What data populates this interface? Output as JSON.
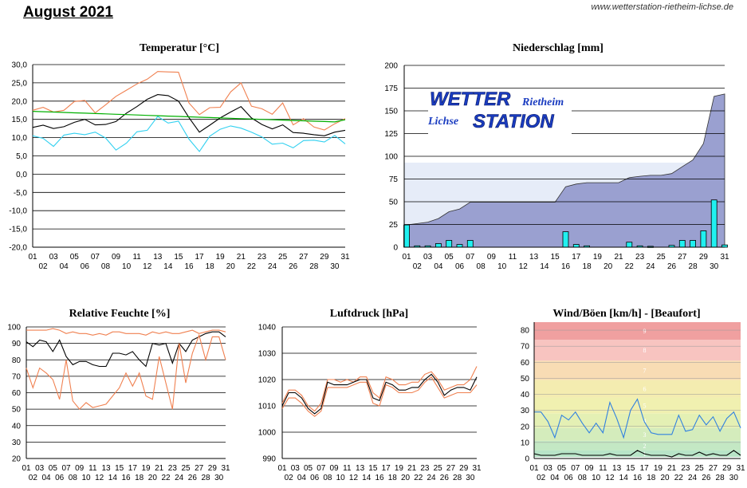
{
  "header": {
    "title": "August 2021",
    "url": "www.wetterstation-rietheim-lichse.de"
  },
  "logo": {
    "word_wetter": "WETTER",
    "word_rietheim": "Rietheim",
    "word_lichse": "Lichse",
    "word_station": "STATION"
  },
  "colors": {
    "temp_max": "#f08050",
    "temp_mean": "#000000",
    "temp_min": "#30d0f0",
    "temp_trend": "#00b000",
    "rain_fill": "#9aa0d0",
    "rain_bar": "#20f0f0",
    "rain_band": "#e6ecf8",
    "humidity_mean": "#000000",
    "humidity_range": "#f08050",
    "pressure_mean": "#000000",
    "pressure_range": "#f08050",
    "wind_gust": "#3080e0",
    "wind_mean": "#000000"
  },
  "chart_data": [
    {
      "type": "line",
      "title": "Temperatur [°C]",
      "ylim": [
        -20,
        30
      ],
      "yticks": [
        "30,0",
        "25,0",
        "20,0",
        "15,0",
        "10,0",
        "5,0",
        "0,0",
        "-5,0",
        "-10,0",
        "-15,0",
        "-20,0"
      ],
      "x": [
        "01",
        "02",
        "03",
        "04",
        "05",
        "06",
        "07",
        "08",
        "09",
        "10",
        "11",
        "12",
        "13",
        "14",
        "15",
        "16",
        "17",
        "18",
        "19",
        "20",
        "21",
        "22",
        "23",
        "24",
        "25",
        "26",
        "27",
        "28",
        "29",
        "30",
        "31"
      ],
      "series": [
        {
          "role": "max",
          "values": [
            17.5,
            18.3,
            17.0,
            17.5,
            19.9,
            20.2,
            16.8,
            19.0,
            21.3,
            23.0,
            24.7,
            26.0,
            28.1,
            28.0,
            27.9,
            19.5,
            16.3,
            18.2,
            18.3,
            22.5,
            25.0,
            18.6,
            17.9,
            16.4,
            19.5,
            13.5,
            15.2,
            12.9,
            12.1,
            13.8,
            15.2
          ]
        },
        {
          "role": "mean",
          "values": [
            12.8,
            13.4,
            12.5,
            13.0,
            14.2,
            15.0,
            13.5,
            13.6,
            14.4,
            16.7,
            18.5,
            20.5,
            21.8,
            21.5,
            20.0,
            15.5,
            11.5,
            13.4,
            15.4,
            17.0,
            18.5,
            15.4,
            13.6,
            12.4,
            13.5,
            11.4,
            11.2,
            10.8,
            10.5,
            11.5,
            12.0
          ]
        },
        {
          "role": "min",
          "values": [
            10.5,
            9.8,
            7.6,
            10.7,
            11.2,
            10.8,
            11.5,
            9.9,
            6.6,
            8.5,
            11.6,
            12.0,
            15.8,
            14.0,
            14.5,
            9.6,
            6.2,
            10.4,
            12.3,
            13.2,
            12.6,
            11.5,
            10.2,
            8.2,
            8.5,
            7.2,
            9.2,
            9.3,
            8.8,
            10.6,
            8.3
          ]
        },
        {
          "role": "trend",
          "values": [
            17.2,
            17.1,
            17.0,
            16.9,
            16.8,
            16.7,
            16.6,
            16.5,
            16.4,
            16.3,
            16.2,
            16.1,
            16.0,
            15.9,
            15.8,
            15.7,
            15.6,
            15.5,
            15.4,
            15.3,
            15.2,
            15.1,
            15.0,
            14.9,
            14.8,
            14.7,
            14.6,
            14.5,
            14.4,
            14.3,
            14.9
          ]
        }
      ]
    },
    {
      "type": "bar",
      "title": "Niederschlag [mm]",
      "ylim": [
        0,
        200
      ],
      "yticks": [
        "200",
        "175",
        "150",
        "125",
        "100",
        "75",
        "50",
        "25",
        "0"
      ],
      "x": [
        "01",
        "02",
        "03",
        "04",
        "05",
        "06",
        "07",
        "08",
        "09",
        "10",
        "11",
        "12",
        "13",
        "14",
        "15",
        "16",
        "17",
        "18",
        "19",
        "20",
        "21",
        "22",
        "23",
        "24",
        "25",
        "26",
        "27",
        "28",
        "29",
        "30",
        "31"
      ],
      "band_upper": 93,
      "series": [
        {
          "role": "daily",
          "values": [
            24.5,
            1.5,
            1.5,
            4.0,
            7.5,
            3.0,
            7.5,
            0,
            0,
            0,
            0,
            0,
            0,
            0,
            0,
            17.0,
            3.0,
            1.5,
            0,
            0,
            0,
            5.5,
            1.5,
            1.0,
            0,
            2.0,
            7.5,
            7.5,
            18.0,
            52.0,
            2.5
          ]
        },
        {
          "role": "cumulative",
          "values": [
            24.5,
            26.0,
            27.5,
            31.5,
            39.0,
            42.0,
            49.5,
            49.5,
            49.5,
            49.5,
            49.5,
            49.5,
            49.5,
            49.5,
            49.5,
            66.5,
            69.5,
            71.0,
            71.0,
            71.0,
            71.0,
            76.5,
            78.0,
            79.0,
            79.0,
            81.0,
            88.5,
            96.0,
            114.0,
            166.0,
            168.5
          ]
        }
      ]
    },
    {
      "type": "line",
      "title": "Relative Feuchte [%]",
      "ylim": [
        20,
        100
      ],
      "yticks": [
        "100",
        "90",
        "80",
        "70",
        "60",
        "50",
        "40",
        "30",
        "20"
      ],
      "x": [
        "01",
        "02",
        "03",
        "04",
        "05",
        "06",
        "07",
        "08",
        "09",
        "10",
        "11",
        "12",
        "13",
        "14",
        "15",
        "16",
        "17",
        "18",
        "19",
        "20",
        "21",
        "22",
        "23",
        "24",
        "25",
        "26",
        "27",
        "28",
        "29",
        "30",
        "31"
      ],
      "series": [
        {
          "role": "max",
          "values": [
            98,
            98,
            98,
            98,
            99,
            98,
            96,
            97,
            96,
            96,
            95,
            96,
            95,
            97,
            97,
            96,
            96,
            96,
            95,
            97,
            96,
            97,
            96,
            96,
            97,
            98,
            96,
            97,
            98,
            98,
            97
          ]
        },
        {
          "role": "mean",
          "values": [
            91,
            88,
            92,
            91,
            85,
            92,
            82,
            77,
            79,
            79,
            77,
            76,
            76,
            84,
            84,
            83,
            85,
            80,
            76,
            90,
            89,
            90,
            78,
            90,
            85,
            92,
            94,
            96,
            97,
            97,
            94
          ]
        },
        {
          "role": "min",
          "values": [
            75,
            63,
            75,
            72,
            68,
            56,
            80,
            55,
            50,
            54,
            51,
            52,
            53,
            58,
            63,
            72,
            64,
            72,
            58,
            56,
            82,
            66,
            50,
            90,
            66,
            84,
            95,
            80,
            94,
            94,
            80
          ]
        }
      ]
    },
    {
      "type": "line",
      "title": "Luftdruck [hPa]",
      "ylim": [
        990,
        1040
      ],
      "yticks": [
        "1040",
        "1030",
        "1020",
        "1010",
        "1000",
        "990"
      ],
      "x": [
        "01",
        "02",
        "03",
        "04",
        "05",
        "06",
        "07",
        "08",
        "09",
        "10",
        "11",
        "12",
        "13",
        "14",
        "15",
        "16",
        "17",
        "18",
        "19",
        "20",
        "21",
        "22",
        "23",
        "24",
        "25",
        "26",
        "27",
        "28",
        "29",
        "30",
        "31"
      ],
      "series": [
        {
          "role": "max",
          "values": [
            1011,
            1016,
            1016,
            1014,
            1010,
            1008,
            1011,
            1020,
            1020,
            1019,
            1020,
            1019,
            1021,
            1021,
            1015,
            1013,
            1021,
            1020,
            1018,
            1018,
            1019,
            1019,
            1022,
            1023,
            1020,
            1016,
            1017,
            1018,
            1018,
            1020,
            1025
          ]
        },
        {
          "role": "mean",
          "values": [
            1010,
            1015,
            1015,
            1013,
            1009,
            1007,
            1009,
            1019,
            1018,
            1018,
            1018,
            1019,
            1020,
            1020,
            1013,
            1012,
            1019,
            1018,
            1016,
            1016,
            1017,
            1017,
            1020,
            1022,
            1019,
            1014,
            1016,
            1017,
            1017,
            1016,
            1021
          ]
        },
        {
          "role": "min",
          "values": [
            1009,
            1013,
            1013,
            1011,
            1008,
            1006,
            1008,
            1017,
            1017,
            1017,
            1017,
            1018,
            1019,
            1019,
            1011,
            1010,
            1018,
            1017,
            1015,
            1015,
            1015,
            1016,
            1019,
            1021,
            1017,
            1013,
            1014,
            1015,
            1015,
            1015,
            1018
          ]
        }
      ]
    },
    {
      "type": "line",
      "title": "Wind/Böen [km/h] - [Beaufort]",
      "ylim": [
        0,
        85
      ],
      "yticks": [
        "80",
        "70",
        "60",
        "50",
        "40",
        "30",
        "20",
        "10",
        "0"
      ],
      "x": [
        "01",
        "02",
        "03",
        "04",
        "05",
        "06",
        "07",
        "08",
        "09",
        "10",
        "11",
        "12",
        "13",
        "14",
        "15",
        "16",
        "17",
        "18",
        "19",
        "20",
        "21",
        "22",
        "23",
        "24",
        "25",
        "26",
        "27",
        "28",
        "29",
        "30",
        "31"
      ],
      "beaufort_bands": [
        {
          "label": "1",
          "from": 1,
          "to": 5,
          "color": "#b8e4c8"
        },
        {
          "label": "2",
          "from": 5,
          "to": 11,
          "color": "#c4e8c4"
        },
        {
          "label": "3",
          "from": 11,
          "to": 19,
          "color": "#d4ecbc"
        },
        {
          "label": "4",
          "from": 19,
          "to": 28,
          "color": "#e4f0b4"
        },
        {
          "label": "5",
          "from": 28,
          "to": 38,
          "color": "#f0f0b0"
        },
        {
          "label": "6",
          "from": 38,
          "to": 49,
          "color": "#f4ecb0"
        },
        {
          "label": "7",
          "from": 49,
          "to": 61,
          "color": "#f8dcb4"
        },
        {
          "label": "8",
          "from": 61,
          "to": 74,
          "color": "#f8c4c0"
        },
        {
          "label": "9",
          "from": 74,
          "to": 85,
          "color": "#f0a0a0"
        }
      ],
      "series": [
        {
          "role": "gust",
          "values": [
            29,
            29,
            23,
            13,
            27,
            24,
            29,
            22,
            16,
            22,
            16,
            35,
            25,
            13,
            30,
            37,
            23,
            16,
            15,
            15,
            15,
            27,
            17,
            18,
            27,
            21,
            26,
            17,
            25,
            29,
            19
          ]
        },
        {
          "role": "mean",
          "values": [
            3,
            2,
            2,
            2,
            3,
            3,
            3,
            2,
            2,
            2,
            2,
            3,
            2,
            2,
            2,
            5,
            3,
            2,
            2,
            2,
            1,
            3,
            2,
            2,
            4,
            2,
            3,
            2,
            2,
            5,
            2
          ]
        }
      ]
    }
  ]
}
